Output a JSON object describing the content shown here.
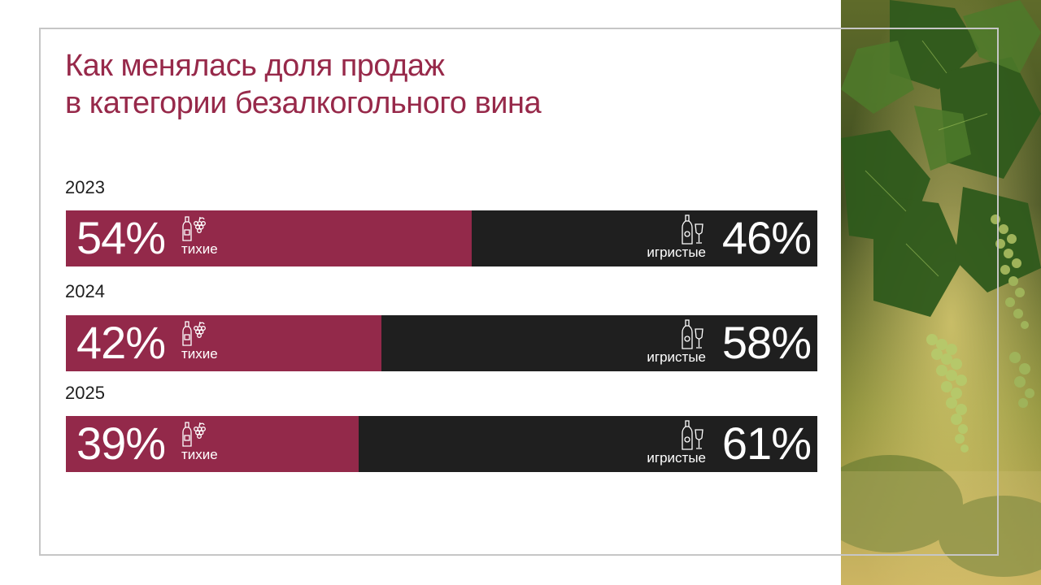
{
  "title_lines": [
    "Как менялась доля продаж",
    "в категории безалкогольного вина"
  ],
  "colors": {
    "still": "#93294a",
    "sparkling": "#1f1f1f",
    "title": "#97294a"
  },
  "icons": {
    "still": "still-wine-bottle-grapes-icon",
    "sparkling": "sparkling-bottle-glass-icon"
  },
  "chart_data": {
    "type": "bar",
    "stacked": true,
    "orientation": "horizontal",
    "title": "Как менялась доля продаж в категории безалкогольного вина",
    "categories": [
      "2023",
      "2024",
      "2025"
    ],
    "unit": "%",
    "series": [
      {
        "name": "тихие",
        "values": [
          54,
          42,
          39
        ],
        "labels": [
          "54%",
          "42%",
          "39%"
        ]
      },
      {
        "name": "игристые",
        "values": [
          46,
          58,
          61
        ],
        "labels": [
          "46%",
          "58%",
          "61%"
        ]
      }
    ],
    "xlim": [
      0,
      100
    ],
    "grid": false
  }
}
